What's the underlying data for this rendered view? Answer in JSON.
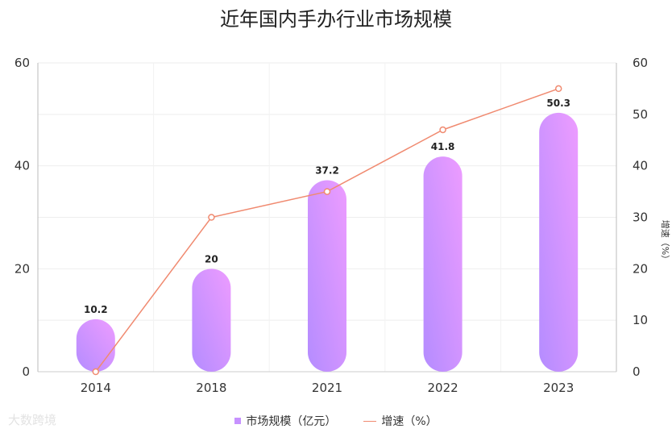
{
  "chart_data": {
    "type": "bar",
    "title": "近年国内手办行业市场规模",
    "categories": [
      "2014",
      "2018",
      "2021",
      "2022",
      "2023"
    ],
    "series": [
      {
        "name": "市场规模（亿元）",
        "type": "bar",
        "axis": "left",
        "values": [
          10.2,
          20,
          37.2,
          41.8,
          50.3
        ],
        "data_labels": [
          "10.2",
          "20",
          "37.2",
          "41.8",
          "50.3"
        ]
      },
      {
        "name": "增速（%）",
        "type": "line",
        "axis": "right",
        "values": [
          0,
          30,
          35,
          47,
          55
        ]
      }
    ],
    "y_left": {
      "ylim": [
        0,
        60
      ],
      "ticks": [
        "0",
        "20",
        "40",
        "60"
      ]
    },
    "y_right": {
      "label": "增速（%）",
      "ylim": [
        0,
        60
      ],
      "ticks": [
        "0",
        "10",
        "20",
        "30",
        "40",
        "50",
        "60"
      ]
    },
    "legend_position": "bottom-center",
    "grid": true,
    "colors": {
      "bar_top": "#e99bff",
      "bar_bottom": "#b48cff",
      "line": "#f08a70",
      "marker_fill": "#ffffff"
    }
  },
  "watermark": "大数跨境"
}
